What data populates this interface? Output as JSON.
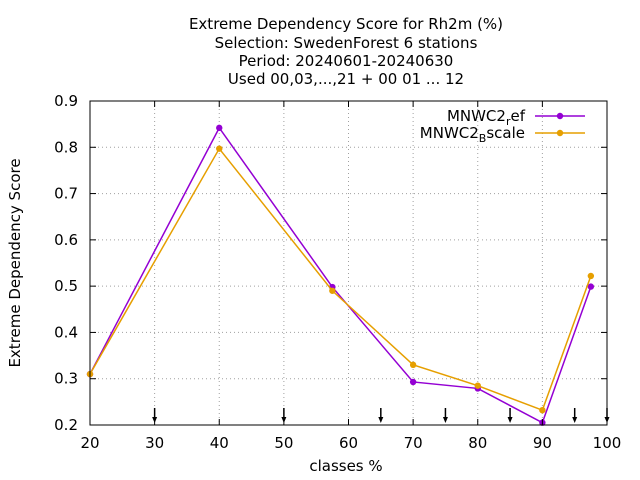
{
  "chart_data": {
    "type": "line",
    "title_lines": [
      "Extreme Dependency Score  for Rh2m (%)",
      "Selection: SwedenForest      6 stations",
      "Period: 20240601-20240630",
      "Used 00,03,...,21 + 00 01 ... 12"
    ],
    "xlabel": "classes %",
    "ylabel": "Extreme Dependency Score",
    "xlim": [
      20,
      100
    ],
    "ylim": [
      0.2,
      0.9
    ],
    "xticks": [
      20,
      30,
      40,
      50,
      60,
      70,
      80,
      90,
      100
    ],
    "yticks": [
      0.2,
      0.3,
      0.4,
      0.5,
      0.6,
      0.7,
      0.8,
      0.9
    ],
    "ytick_labels": [
      "0.2",
      "0.3",
      "0.4",
      "0.5",
      "0.6",
      "0.7",
      "0.8",
      "0.9"
    ],
    "grid": true,
    "legend_position": "top-right",
    "threshold_markers": [
      30,
      50,
      65,
      75,
      85,
      95,
      100
    ],
    "series": [
      {
        "name_main": "MNWC2",
        "name_sub": "r",
        "name_rest": "ef",
        "color": "#9400d3",
        "x": [
          20,
          40,
          57.5,
          70,
          80,
          90,
          97.5
        ],
        "y": [
          0.31,
          0.842,
          0.498,
          0.293,
          0.279,
          0.205,
          0.499
        ]
      },
      {
        "name_main": "MNWC2",
        "name_sub": "B",
        "name_rest": "scale",
        "color": "#e69f00",
        "x": [
          20,
          40,
          57.5,
          70,
          80,
          90,
          97.5
        ],
        "y": [
          0.31,
          0.797,
          0.49,
          0.33,
          0.285,
          0.232,
          0.522
        ]
      }
    ]
  }
}
